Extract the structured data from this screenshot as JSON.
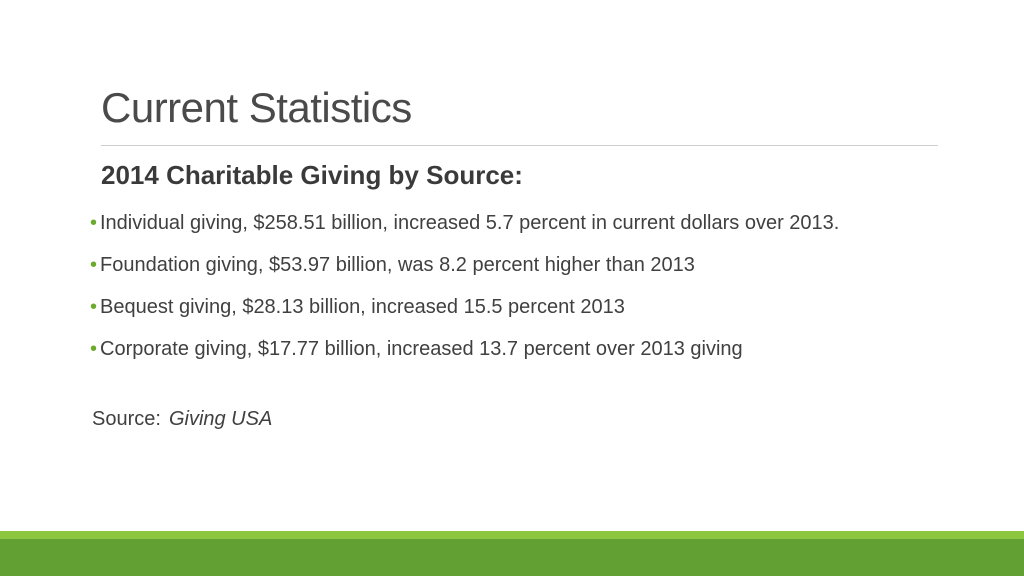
{
  "slide": {
    "title": "Current Statistics",
    "subtitle": "2014 Charitable Giving by Source:",
    "bullets": [
      {
        "text": "Individual giving, $258.51 billion, increased 5.7 percent in current dollars over 2013."
      },
      {
        "text": "Foundation giving, $53.97 billion, was 8.2 percent higher than 2013"
      },
      {
        "text": "Bequest giving, $28.13 billion, increased 15.5 percent 2013"
      },
      {
        "text": "Corporate giving, $17.77 billion, increased 13.7 percent over 2013 giving"
      }
    ],
    "bullet_glyph": "•",
    "source_label": "Source:",
    "source_name": "Giving USA"
  },
  "colors": {
    "accent": "#6aaa2c",
    "footer_light": "#8dc63f",
    "footer_dark": "#62a033"
  }
}
